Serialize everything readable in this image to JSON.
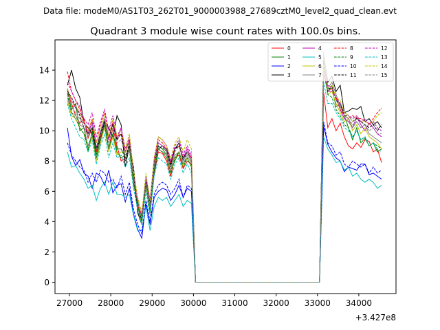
{
  "chart_data": {
    "type": "line",
    "suptitle": "Data file: modeM0/AS1T03_262T01_9000003988_27689cztM0_level2_quad_clean.evt",
    "title": "Quadrant 3 module wise count rates with 100.0s bins.",
    "xlabel": "",
    "ylabel": "",
    "offset_label": "+3.427e8",
    "xlim": [
      26650,
      34900
    ],
    "ylim": [
      -0.75,
      16.0
    ],
    "xticks": [
      27000,
      28000,
      29000,
      30000,
      31000,
      32000,
      33000,
      34000
    ],
    "xtick_labels": [
      "27000",
      "28000",
      "29000",
      "30000",
      "31000",
      "32000",
      "33000",
      "34000"
    ],
    "yticks": [
      0,
      2,
      4,
      6,
      8,
      10,
      12,
      14
    ],
    "ytick_labels": [
      "0",
      "2",
      "4",
      "6",
      "8",
      "10",
      "12",
      "14"
    ],
    "legend_position": "top-right",
    "gap": {
      "start": 30050,
      "end": 33050,
      "value": 0
    },
    "x_segment1": {
      "start": 26950,
      "step": 100,
      "count": 32
    },
    "x_segment2": {
      "start": 33150,
      "step": 100,
      "count": 15
    },
    "series": [
      {
        "name": "0",
        "color": "#ff0000",
        "dash": "solid",
        "seg1": [
          12.5,
          11.8,
          11.0,
          10.5,
          10.8,
          9.5,
          10.2,
          8.6,
          9.6,
          10.4,
          8.8,
          10.2,
          9.0,
          8.0,
          8.2,
          8.8,
          6.5,
          5.2,
          3.9,
          6.5,
          4.5,
          7.2,
          8.6,
          8.5,
          8.0,
          7.0,
          8.2,
          8.4,
          7.5,
          8.0,
          7.8,
          0.0
        ],
        "seg2": [
          12.5,
          10.2,
          10.8,
          10.0,
          10.5,
          9.6,
          9.0,
          8.8,
          9.2,
          8.9,
          9.4,
          9.3,
          8.6,
          8.8,
          7.9
        ]
      },
      {
        "name": "1",
        "color": "#008000",
        "dash": "solid",
        "seg1": [
          12.8,
          11.4,
          11.8,
          10.0,
          10.2,
          8.6,
          10.0,
          8.4,
          9.8,
          10.8,
          8.8,
          9.8,
          8.6,
          8.2,
          8.4,
          8.8,
          6.4,
          5.4,
          4.0,
          6.6,
          4.6,
          7.6,
          9.0,
          8.8,
          8.4,
          7.4,
          8.0,
          8.6,
          7.8,
          8.2,
          7.6,
          0.0
        ],
        "seg2": [
          14.6,
          12.8,
          12.8,
          11.6,
          11.8,
          11.0,
          10.2,
          9.4,
          10.2,
          9.2,
          9.5,
          9.0,
          9.2,
          8.6,
          8.8
        ]
      },
      {
        "name": "2",
        "color": "#0000ff",
        "dash": "solid",
        "seg1": [
          10.2,
          8.3,
          7.7,
          8.1,
          7.2,
          7.0,
          6.2,
          7.2,
          7.0,
          6.4,
          7.4,
          5.9,
          6.4,
          6.5,
          5.3,
          6.2,
          4.5,
          3.5,
          2.9,
          5.2,
          3.8,
          5.6,
          6.0,
          6.2,
          6.1,
          5.4,
          5.8,
          6.4,
          5.6,
          6.2,
          6.0,
          0.0
        ],
        "seg2": [
          10.3,
          9.1,
          8.6,
          8.2,
          8.0,
          7.3,
          7.6,
          7.5,
          7.4,
          7.8,
          7.8,
          7.1,
          7.2,
          7.0,
          6.8
        ]
      },
      {
        "name": "3",
        "color": "#000000",
        "dash": "solid",
        "seg1": [
          13.0,
          14.0,
          12.8,
          12.2,
          10.5,
          10.2,
          9.8,
          8.8,
          9.4,
          10.6,
          10.2,
          9.6,
          11.0,
          10.4,
          7.6,
          9.0,
          7.6,
          4.6,
          3.8,
          6.8,
          5.4,
          7.2,
          8.8,
          9.0,
          8.6,
          7.6,
          8.8,
          9.2,
          8.0,
          8.6,
          8.0,
          0.0
        ],
        "seg2": [
          15.0,
          13.2,
          13.6,
          12.6,
          13.0,
          11.2,
          11.3,
          11.5,
          11.4,
          11.6,
          10.6,
          10.8,
          10.4,
          10.6,
          10.2
        ]
      },
      {
        "name": "4",
        "color": "#bf00bf",
        "dash": "solid",
        "seg1": [
          12.7,
          12.0,
          11.5,
          11.2,
          10.6,
          9.8,
          10.6,
          8.9,
          9.8,
          10.8,
          9.4,
          10.5,
          9.4,
          10.2,
          8.6,
          9.4,
          7.0,
          5.2,
          4.4,
          6.6,
          5.0,
          8.0,
          9.2,
          9.0,
          8.8,
          7.8,
          8.8,
          9.0,
          8.2,
          8.8,
          8.2,
          0.0
        ],
        "seg2": [
          13.8,
          12.6,
          12.6,
          12.2,
          11.4,
          10.8,
          10.6,
          10.2,
          10.9,
          10.4,
          10.0,
          10.5,
          10.2,
          9.8,
          9.6
        ]
      },
      {
        "name": "5",
        "color": "#00bfbf",
        "dash": "solid",
        "seg1": [
          8.6,
          7.6,
          7.7,
          7.2,
          6.8,
          6.2,
          6.4,
          5.4,
          6.2,
          6.6,
          5.8,
          6.6,
          5.8,
          5.8,
          5.6,
          5.8,
          4.4,
          3.4,
          3.4,
          5.0,
          3.4,
          5.0,
          5.6,
          5.4,
          5.6,
          5.0,
          5.4,
          5.8,
          5.0,
          5.4,
          5.2,
          0.0
        ],
        "seg2": [
          9.6,
          8.8,
          8.4,
          7.9,
          8.0,
          7.4,
          7.6,
          7.0,
          7.2,
          6.8,
          6.6,
          6.8,
          6.6,
          6.2,
          6.4
        ]
      },
      {
        "name": "6",
        "color": "#bfbf00",
        "dash": "solid",
        "seg1": [
          12.0,
          11.0,
          10.8,
          10.2,
          9.8,
          8.8,
          9.6,
          8.0,
          9.2,
          10.2,
          8.6,
          9.6,
          8.4,
          8.6,
          8.6,
          8.8,
          6.6,
          5.0,
          3.8,
          6.4,
          4.6,
          7.4,
          8.8,
          8.6,
          8.2,
          7.2,
          8.2,
          8.6,
          7.6,
          8.2,
          7.6,
          0.0
        ],
        "seg2": [
          14.8,
          12.4,
          12.6,
          11.8,
          11.2,
          10.6,
          10.8,
          10.0,
          10.4,
          9.8,
          10.2,
          9.6,
          9.4,
          9.2,
          8.8
        ]
      },
      {
        "name": "7",
        "color": "#808080",
        "dash": "solid",
        "seg1": [
          12.2,
          11.2,
          11.0,
          10.4,
          10.2,
          9.0,
          9.8,
          8.2,
          9.4,
          10.4,
          8.8,
          9.8,
          8.8,
          8.8,
          8.4,
          8.8,
          6.6,
          5.0,
          4.0,
          6.4,
          4.8,
          7.6,
          8.8,
          8.6,
          8.4,
          7.4,
          8.4,
          8.6,
          7.8,
          8.4,
          7.8,
          0.0
        ],
        "seg2": [
          15.2,
          12.8,
          13.2,
          12.4,
          11.6,
          11.0,
          10.8,
          10.2,
          10.6,
          10.2,
          10.4,
          9.8,
          9.6,
          9.4,
          9.2
        ]
      },
      {
        "name": "8",
        "color": "#ff0000",
        "dash": "dashed",
        "seg1": [
          13.9,
          12.6,
          12.0,
          11.4,
          10.6,
          10.0,
          10.8,
          9.2,
          10.4,
          11.2,
          9.6,
          10.6,
          9.6,
          9.8,
          8.6,
          9.4,
          7.0,
          5.2,
          4.4,
          6.8,
          5.2,
          8.0,
          9.4,
          9.2,
          8.8,
          7.8,
          8.8,
          9.0,
          8.2,
          8.6,
          8.2,
          0.0
        ],
        "seg2": [
          13.8,
          12.6,
          12.8,
          12.2,
          11.4,
          11.0,
          10.8,
          11.0,
          10.8,
          10.8,
          10.6,
          10.4,
          10.8,
          11.2,
          11.5
        ]
      },
      {
        "name": "9",
        "color": "#008000",
        "dash": "dashed",
        "seg1": [
          12.4,
          11.2,
          10.8,
          10.2,
          9.8,
          8.8,
          9.8,
          8.2,
          9.4,
          10.4,
          8.8,
          9.8,
          8.8,
          8.8,
          8.2,
          8.8,
          6.6,
          5.0,
          4.0,
          6.4,
          4.6,
          7.4,
          8.8,
          8.6,
          8.2,
          7.2,
          8.2,
          8.6,
          7.6,
          8.2,
          7.6,
          0.0
        ],
        "seg2": [
          14.2,
          12.4,
          12.2,
          11.4,
          11.0,
          10.4,
          10.2,
          9.6,
          10.0,
          9.4,
          9.6,
          9.0,
          9.2,
          9.0,
          8.8
        ]
      },
      {
        "name": "10",
        "color": "#0000ff",
        "dash": "dashed",
        "seg1": [
          9.2,
          8.4,
          8.0,
          7.6,
          7.4,
          6.6,
          7.2,
          6.6,
          7.4,
          7.2,
          6.6,
          6.8,
          6.2,
          7.0,
          5.8,
          6.6,
          4.8,
          3.8,
          3.2,
          5.4,
          4.0,
          5.8,
          6.4,
          6.6,
          6.4,
          5.8,
          6.2,
          6.8,
          5.6,
          6.4,
          6.2,
          0.0
        ],
        "seg2": [
          10.6,
          9.2,
          9.0,
          8.4,
          8.6,
          7.8,
          7.6,
          8.0,
          7.8,
          7.6,
          7.8,
          7.2,
          7.6,
          7.2,
          7.4
        ]
      },
      {
        "name": "11",
        "color": "#000000",
        "dash": "dashed",
        "seg1": [
          12.6,
          12.2,
          11.6,
          11.0,
          10.2,
          9.8,
          10.2,
          8.8,
          9.8,
          10.6,
          9.6,
          10.4,
          9.4,
          9.8,
          8.0,
          9.2,
          7.2,
          4.6,
          4.2,
          6.8,
          5.2,
          7.8,
          9.0,
          8.8,
          8.8,
          7.8,
          8.8,
          9.0,
          8.2,
          8.6,
          8.0,
          0.0
        ],
        "seg2": [
          14.6,
          12.6,
          13.0,
          12.0,
          11.8,
          11.0,
          11.0,
          10.6,
          10.8,
          10.6,
          10.4,
          10.2,
          10.4,
          10.0,
          10.4
        ]
      },
      {
        "name": "12",
        "color": "#bf00bf",
        "dash": "dashed",
        "seg1": [
          13.2,
          12.6,
          12.0,
          11.6,
          10.8,
          10.4,
          11.2,
          9.6,
          10.6,
          11.4,
          10.0,
          11.0,
          9.6,
          10.2,
          8.8,
          9.6,
          7.2,
          5.6,
          4.6,
          7.0,
          5.4,
          8.2,
          9.6,
          9.4,
          9.0,
          8.0,
          9.0,
          9.4,
          8.4,
          9.0,
          8.4,
          0.0
        ],
        "seg2": [
          14.0,
          13.0,
          12.8,
          12.2,
          11.8,
          11.2,
          11.0,
          10.8,
          11.0,
          10.6,
          10.8,
          10.4,
          10.6,
          10.2,
          10.0
        ]
      },
      {
        "name": "13",
        "color": "#00bfbf",
        "dash": "dashed",
        "seg1": [
          11.8,
          10.8,
          10.2,
          9.6,
          9.4,
          8.6,
          9.4,
          7.8,
          9.0,
          9.8,
          8.2,
          9.2,
          8.2,
          8.4,
          7.6,
          8.2,
          6.2,
          4.8,
          3.8,
          6.0,
          4.4,
          7.0,
          8.2,
          8.0,
          7.8,
          6.8,
          7.8,
          8.2,
          7.2,
          7.8,
          7.2,
          0.0
        ],
        "seg2": [
          13.2,
          11.8,
          11.8,
          11.2,
          10.8,
          10.2,
          10.0,
          9.6,
          10.0,
          9.4,
          9.6,
          9.0,
          9.2,
          8.8,
          8.6
        ]
      },
      {
        "name": "14",
        "color": "#bfbf00",
        "dash": "dashed",
        "seg1": [
          12.8,
          12.0,
          11.6,
          11.2,
          10.6,
          10.0,
          10.8,
          9.2,
          10.2,
          11.0,
          9.6,
          10.8,
          9.6,
          10.0,
          8.8,
          9.8,
          7.4,
          5.6,
          4.6,
          7.2,
          5.4,
          8.2,
          9.6,
          9.4,
          9.0,
          8.2,
          9.2,
          9.6,
          8.6,
          9.4,
          8.8,
          0.0
        ],
        "seg2": [
          14.4,
          12.8,
          13.0,
          12.2,
          12.0,
          11.2,
          11.0,
          10.6,
          11.0,
          10.6,
          10.6,
          10.4,
          10.6,
          11.0,
          11.2
        ]
      },
      {
        "name": "15",
        "color": "#808080",
        "dash": "dashed",
        "seg1": [
          12.4,
          11.6,
          11.2,
          10.8,
          10.2,
          9.6,
          10.4,
          8.8,
          10.0,
          10.8,
          9.2,
          10.2,
          9.2,
          9.4,
          8.6,
          9.2,
          7.0,
          5.2,
          4.2,
          6.8,
          5.0,
          7.8,
          9.2,
          9.0,
          8.6,
          7.6,
          8.6,
          9.0,
          8.0,
          8.6,
          8.0,
          0.0
        ],
        "seg2": [
          14.2,
          12.6,
          12.8,
          12.0,
          11.6,
          11.0,
          10.8,
          10.4,
          10.6,
          10.2,
          10.4,
          10.0,
          10.2,
          9.8,
          9.8
        ]
      }
    ]
  }
}
